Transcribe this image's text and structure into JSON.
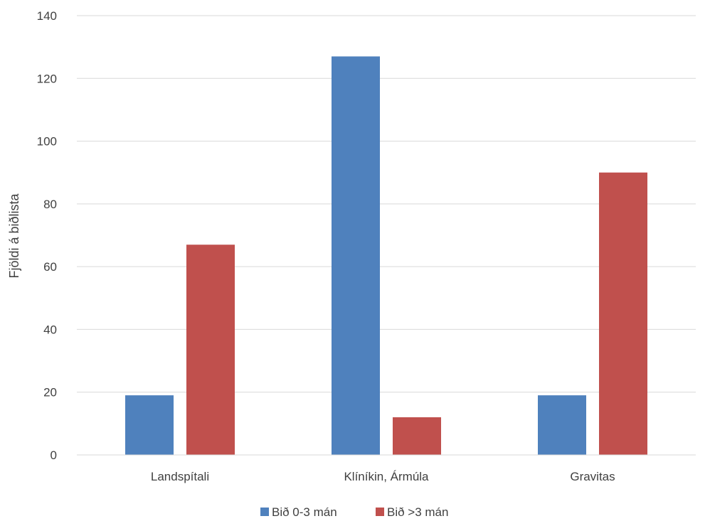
{
  "chart_data": {
    "type": "bar",
    "title": "",
    "xlabel": "",
    "ylabel": "Fjöldi á biðlista",
    "categories": [
      "Landspítali",
      "Klíníkin, Ármúla",
      "Gravitas"
    ],
    "series": [
      {
        "name": "Bið 0-3 mán",
        "values": [
          19,
          127,
          19
        ],
        "color": "#4F81BD"
      },
      {
        "name": "Bið >3 mán",
        "values": [
          67,
          12,
          90
        ],
        "color": "#C0504D"
      }
    ],
    "ylim": [
      0,
      140
    ],
    "yticks": [
      0,
      20,
      40,
      60,
      80,
      100,
      120,
      140
    ],
    "grid": true,
    "legend_position": "bottom"
  }
}
